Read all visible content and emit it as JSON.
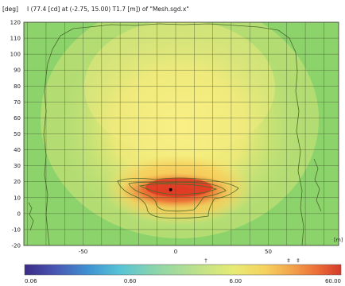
{
  "header": {
    "unit_label": "[deg]",
    "caption": "I (77.4 [cd] at (-2.75, 15.00) T1.7 [m]) of \"Mesh.sgd.x\""
  },
  "chart_data": {
    "type": "heatmap",
    "title": "I (77.4 [cd] at (-2.75, 15.00) T1.7 [m]) of \"Mesh.sgd.x\"",
    "x_unit_label": "[m]",
    "y_unit_label": "[deg]",
    "xlim": [
      -82,
      88
    ],
    "ylim": [
      -20,
      120
    ],
    "x_ticks": [
      -50,
      0,
      50
    ],
    "x_tick_labels": [
      "-50",
      "0",
      "50"
    ],
    "y_ticks": [
      -20,
      -10,
      0,
      10,
      20,
      30,
      40,
      50,
      60,
      70,
      80,
      90,
      100,
      110,
      120
    ],
    "y_tick_labels": [
      "-20",
      "-10",
      "0",
      "10",
      "20",
      "30",
      "40",
      "50",
      "60",
      "70",
      "80",
      "90",
      "100",
      "110",
      "120"
    ],
    "grid": true,
    "peak": {
      "x": -2.75,
      "y": 15.0,
      "value": 77.4
    },
    "colorbar": {
      "tick_values": [
        0.06,
        0.6,
        6.0,
        60.0
      ],
      "tick_labels": [
        "0.06",
        "0.60",
        "6.00",
        "60.00"
      ],
      "marker_labels": [
        "†",
        "‡",
        "‡"
      ],
      "colors": [
        "#3b2c86",
        "#4a57b4",
        "#3f92d2",
        "#57c3d6",
        "#8fd6a9",
        "#bfe189",
        "#e7eb74",
        "#f5d25f",
        "#f2a049",
        "#ec6a36",
        "#d33a2a"
      ]
    },
    "colors": {
      "background_field": "#8dd36c",
      "contour": "#4a6a2a",
      "peak_marker": "#000000"
    }
  }
}
